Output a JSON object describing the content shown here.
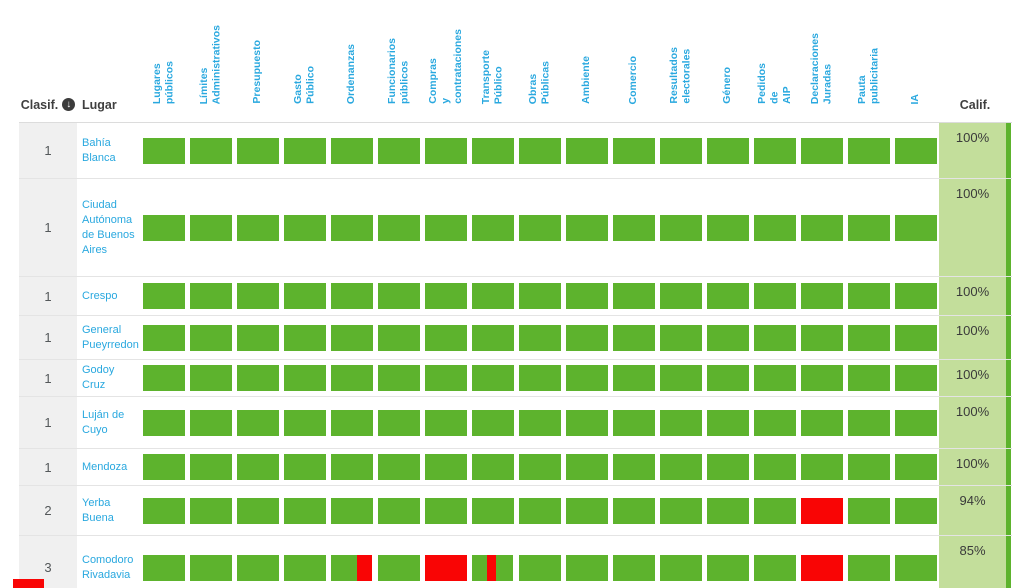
{
  "table": {
    "header": {
      "clasif_label": "Clasif.",
      "lugar_label": "Lugar",
      "calif_label": "Calif.",
      "categories": [
        "Lugares\npúblicos",
        "Límites\nAdministrativos",
        "Presupuesto",
        "Gasto\nPúblico",
        "Ordenanzas",
        "Funcionarios\npúblicos",
        "Compras\ny\ncontrataciones",
        "Transporte\nPúblico",
        "Obras\nPúblicas",
        "Ambiente",
        "Comercio",
        "Resultados\nelectorales",
        "Género",
        "Pedidos\nde\nAIP",
        "Declaraciones\nJuradas",
        "Pauta\npublicitaria",
        "IA"
      ]
    },
    "rows": [
      {
        "clasif": "1",
        "lugar": "Bahía Blanca",
        "calif": "100%",
        "cells": [
          [
            [
              "g",
              100
            ]
          ],
          [
            [
              "g",
              100
            ]
          ],
          [
            [
              "g",
              100
            ]
          ],
          [
            [
              "g",
              100
            ]
          ],
          [
            [
              "g",
              100
            ]
          ],
          [
            [
              "g",
              100
            ]
          ],
          [
            [
              "g",
              100
            ]
          ],
          [
            [
              "g",
              100
            ]
          ],
          [
            [
              "g",
              100
            ]
          ],
          [
            [
              "g",
              100
            ]
          ],
          [
            [
              "g",
              100
            ]
          ],
          [
            [
              "g",
              100
            ]
          ],
          [
            [
              "g",
              100
            ]
          ],
          [
            [
              "g",
              100
            ]
          ],
          [
            [
              "g",
              100
            ]
          ],
          [
            [
              "g",
              100
            ]
          ],
          [
            [
              "g",
              100
            ]
          ]
        ]
      },
      {
        "clasif": "1",
        "lugar": "Ciudad Autónoma de Buenos Aires",
        "calif": "100%",
        "cells": [
          [
            [
              "g",
              100
            ]
          ],
          [
            [
              "g",
              100
            ]
          ],
          [
            [
              "g",
              100
            ]
          ],
          [
            [
              "g",
              100
            ]
          ],
          [
            [
              "g",
              100
            ]
          ],
          [
            [
              "g",
              100
            ]
          ],
          [
            [
              "g",
              100
            ]
          ],
          [
            [
              "g",
              100
            ]
          ],
          [
            [
              "g",
              100
            ]
          ],
          [
            [
              "g",
              100
            ]
          ],
          [
            [
              "g",
              100
            ]
          ],
          [
            [
              "g",
              100
            ]
          ],
          [
            [
              "g",
              100
            ]
          ],
          [
            [
              "g",
              100
            ]
          ],
          [
            [
              "g",
              100
            ]
          ],
          [
            [
              "g",
              100
            ]
          ],
          [
            [
              "g",
              100
            ]
          ]
        ]
      },
      {
        "clasif": "1",
        "lugar": "Crespo",
        "calif": "100%",
        "cells": [
          [
            [
              "g",
              100
            ]
          ],
          [
            [
              "g",
              100
            ]
          ],
          [
            [
              "g",
              100
            ]
          ],
          [
            [
              "g",
              100
            ]
          ],
          [
            [
              "g",
              100
            ]
          ],
          [
            [
              "g",
              100
            ]
          ],
          [
            [
              "g",
              100
            ]
          ],
          [
            [
              "g",
              100
            ]
          ],
          [
            [
              "g",
              100
            ]
          ],
          [
            [
              "g",
              100
            ]
          ],
          [
            [
              "g",
              100
            ]
          ],
          [
            [
              "g",
              100
            ]
          ],
          [
            [
              "g",
              100
            ]
          ],
          [
            [
              "g",
              100
            ]
          ],
          [
            [
              "g",
              100
            ]
          ],
          [
            [
              "g",
              100
            ]
          ],
          [
            [
              "g",
              100
            ]
          ]
        ]
      },
      {
        "clasif": "1",
        "lugar": "General Pueyrredon",
        "calif": "100%",
        "cells": [
          [
            [
              "g",
              100
            ]
          ],
          [
            [
              "g",
              100
            ]
          ],
          [
            [
              "g",
              100
            ]
          ],
          [
            [
              "g",
              100
            ]
          ],
          [
            [
              "g",
              100
            ]
          ],
          [
            [
              "g",
              100
            ]
          ],
          [
            [
              "g",
              100
            ]
          ],
          [
            [
              "g",
              100
            ]
          ],
          [
            [
              "g",
              100
            ]
          ],
          [
            [
              "g",
              100
            ]
          ],
          [
            [
              "g",
              100
            ]
          ],
          [
            [
              "g",
              100
            ]
          ],
          [
            [
              "g",
              100
            ]
          ],
          [
            [
              "g",
              100
            ]
          ],
          [
            [
              "g",
              100
            ]
          ],
          [
            [
              "g",
              100
            ]
          ],
          [
            [
              "g",
              100
            ]
          ]
        ]
      },
      {
        "clasif": "1",
        "lugar": "Godoy Cruz",
        "calif": "100%",
        "cells": [
          [
            [
              "g",
              100
            ]
          ],
          [
            [
              "g",
              100
            ]
          ],
          [
            [
              "g",
              100
            ]
          ],
          [
            [
              "g",
              100
            ]
          ],
          [
            [
              "g",
              100
            ]
          ],
          [
            [
              "g",
              100
            ]
          ],
          [
            [
              "g",
              100
            ]
          ],
          [
            [
              "g",
              100
            ]
          ],
          [
            [
              "g",
              100
            ]
          ],
          [
            [
              "g",
              100
            ]
          ],
          [
            [
              "g",
              100
            ]
          ],
          [
            [
              "g",
              100
            ]
          ],
          [
            [
              "g",
              100
            ]
          ],
          [
            [
              "g",
              100
            ]
          ],
          [
            [
              "g",
              100
            ]
          ],
          [
            [
              "g",
              100
            ]
          ],
          [
            [
              "g",
              100
            ]
          ]
        ]
      },
      {
        "clasif": "1",
        "lugar": "Luján de Cuyo",
        "calif": "100%",
        "cells": [
          [
            [
              "g",
              100
            ]
          ],
          [
            [
              "g",
              100
            ]
          ],
          [
            [
              "g",
              100
            ]
          ],
          [
            [
              "g",
              100
            ]
          ],
          [
            [
              "g",
              100
            ]
          ],
          [
            [
              "g",
              100
            ]
          ],
          [
            [
              "g",
              100
            ]
          ],
          [
            [
              "g",
              100
            ]
          ],
          [
            [
              "g",
              100
            ]
          ],
          [
            [
              "g",
              100
            ]
          ],
          [
            [
              "g",
              100
            ]
          ],
          [
            [
              "g",
              100
            ]
          ],
          [
            [
              "g",
              100
            ]
          ],
          [
            [
              "g",
              100
            ]
          ],
          [
            [
              "g",
              100
            ]
          ],
          [
            [
              "g",
              100
            ]
          ],
          [
            [
              "g",
              100
            ]
          ]
        ]
      },
      {
        "clasif": "1",
        "lugar": "Mendoza",
        "calif": "100%",
        "cells": [
          [
            [
              "g",
              100
            ]
          ],
          [
            [
              "g",
              100
            ]
          ],
          [
            [
              "g",
              100
            ]
          ],
          [
            [
              "g",
              100
            ]
          ],
          [
            [
              "g",
              100
            ]
          ],
          [
            [
              "g",
              100
            ]
          ],
          [
            [
              "g",
              100
            ]
          ],
          [
            [
              "g",
              100
            ]
          ],
          [
            [
              "g",
              100
            ]
          ],
          [
            [
              "g",
              100
            ]
          ],
          [
            [
              "g",
              100
            ]
          ],
          [
            [
              "g",
              100
            ]
          ],
          [
            [
              "g",
              100
            ]
          ],
          [
            [
              "g",
              100
            ]
          ],
          [
            [
              "g",
              100
            ]
          ],
          [
            [
              "g",
              100
            ]
          ],
          [
            [
              "g",
              100
            ]
          ]
        ]
      },
      {
        "clasif": "2",
        "lugar": "Yerba Buena",
        "calif": "94%",
        "cells": [
          [
            [
              "g",
              100
            ]
          ],
          [
            [
              "g",
              100
            ]
          ],
          [
            [
              "g",
              100
            ]
          ],
          [
            [
              "g",
              100
            ]
          ],
          [
            [
              "g",
              100
            ]
          ],
          [
            [
              "g",
              100
            ]
          ],
          [
            [
              "g",
              100
            ]
          ],
          [
            [
              "g",
              100
            ]
          ],
          [
            [
              "g",
              100
            ]
          ],
          [
            [
              "g",
              100
            ]
          ],
          [
            [
              "g",
              100
            ]
          ],
          [
            [
              "g",
              100
            ]
          ],
          [
            [
              "g",
              100
            ]
          ],
          [
            [
              "g",
              100
            ]
          ],
          [
            [
              "r",
              100
            ]
          ],
          [
            [
              "g",
              100
            ]
          ],
          [
            [
              "g",
              100
            ]
          ]
        ]
      },
      {
        "clasif": "3",
        "lugar": "Comodoro Rivadavia",
        "calif": "85%",
        "cells": [
          [
            [
              "g",
              100
            ]
          ],
          [
            [
              "g",
              100
            ]
          ],
          [
            [
              "g",
              100
            ]
          ],
          [
            [
              "g",
              100
            ]
          ],
          [
            [
              "g",
              64
            ],
            [
              "r",
              36
            ]
          ],
          [
            [
              "g",
              100
            ]
          ],
          [
            [
              "r",
              100
            ]
          ],
          [
            [
              "g",
              38
            ],
            [
              "r",
              20
            ],
            [
              "g",
              42
            ]
          ],
          [
            [
              "g",
              100
            ]
          ],
          [
            [
              "g",
              100
            ]
          ],
          [
            [
              "g",
              100
            ]
          ],
          [
            [
              "g",
              100
            ]
          ],
          [
            [
              "g",
              100
            ]
          ],
          [
            [
              "g",
              100
            ]
          ],
          [
            [
              "r",
              100
            ]
          ],
          [
            [
              "g",
              100
            ]
          ],
          [
            [
              "g",
              100
            ]
          ]
        ]
      }
    ]
  },
  "colors": {
    "g": "#5db32d",
    "r": "#f90505",
    "header_blue": "#29a8df",
    "calif_bg": "#c3de9b",
    "clasif_bg": "#f0f0f0",
    "text_dark": "#3f3f3f"
  }
}
